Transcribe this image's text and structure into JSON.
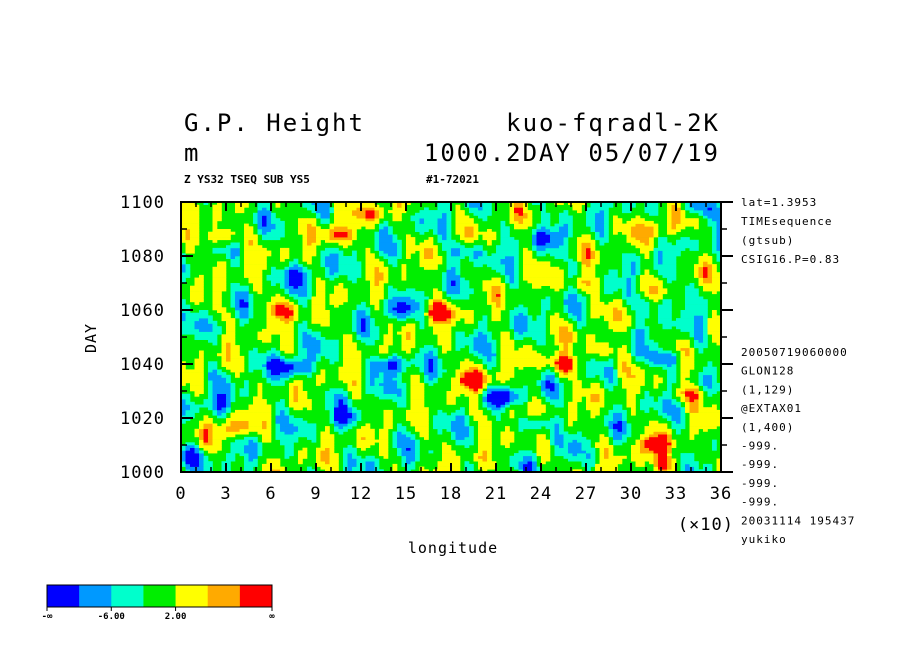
{
  "header": {
    "title_left": "G.P. Height",
    "title_right": "kuo-fqradl-2K",
    "unit": "m",
    "subtitle_right": "1000.2DAY 05/07/19",
    "info_left": "Z YS32 TSEQ SUB YS5",
    "info_right": "#1-72021"
  },
  "side_info_top": [
    "lat=1.3953",
    "TIMEsequence",
    "(gtsub)",
    "CSIG16.P=0.83"
  ],
  "side_info_bottom": [
    "20050719060000",
    "GLON128",
    "(1,129)",
    "@EXTAX01",
    "(1,400)",
    "-999.",
    "-999.",
    "-999.",
    "-999.",
    "20031114 195437",
    "yukiko"
  ],
  "chart_data": {
    "type": "heatmap",
    "xlabel": "longitude",
    "ylabel": "DAY",
    "x_multiplier_label": "(×10)",
    "xlim": [
      0,
      36
    ],
    "ylim": [
      1000,
      1100
    ],
    "x_ticks": [
      "0",
      "3",
      "6",
      "9",
      "12",
      "15",
      "18",
      "21",
      "24",
      "27",
      "30",
      "33",
      "36"
    ],
    "y_ticks": [
      "1000",
      "1020",
      "1040",
      "1060",
      "1080",
      "1100"
    ],
    "colorbar": {
      "colors": [
        "#0000ff",
        "#0099ff",
        "#00ffcc",
        "#00ee00",
        "#ffff00",
        "#ffaa00",
        "#ff0000"
      ],
      "labels": [
        "-∞",
        "-6.00",
        "2.00",
        "∞"
      ]
    },
    "features": [
      {
        "x": 2.6,
        "y": 1087,
        "v": 3
      },
      {
        "x": 10.5,
        "y": 1088,
        "v": 2.5
      },
      {
        "x": 13.0,
        "y": 1096,
        "v": 2
      },
      {
        "x": 27.0,
        "y": 1070,
        "v": 2
      },
      {
        "x": 32.0,
        "y": 1090,
        "v": 2
      },
      {
        "x": 6.5,
        "y": 1060,
        "v": 2.5
      },
      {
        "x": 17.0,
        "y": 1059,
        "v": 3
      },
      {
        "x": 19.5,
        "y": 1034,
        "v": 3.3
      },
      {
        "x": 25.5,
        "y": 1040,
        "v": 3.3
      },
      {
        "x": 28.0,
        "y": 1045,
        "v": 2
      },
      {
        "x": 3.5,
        "y": 1016,
        "v": 2.5
      },
      {
        "x": 31.5,
        "y": 1010,
        "v": 3.2
      },
      {
        "x": 32.5,
        "y": 1003,
        "v": 2.5
      },
      {
        "x": 34.0,
        "y": 1029,
        "v": 2.5
      },
      {
        "x": 22.0,
        "y": 1022,
        "v": 2
      },
      {
        "x": 14.0,
        "y": 1040,
        "v": -3.5
      },
      {
        "x": 7.5,
        "y": 1039,
        "v": -3.5
      },
      {
        "x": 21.5,
        "y": 1028,
        "v": -3
      },
      {
        "x": 24.0,
        "y": 1018,
        "v": -2.5
      },
      {
        "x": 19.0,
        "y": 1082,
        "v": -2
      },
      {
        "x": 24.5,
        "y": 1087,
        "v": -2
      },
      {
        "x": 8.0,
        "y": 1073,
        "v": -2
      },
      {
        "x": 11.0,
        "y": 1020,
        "v": -2
      },
      {
        "x": 32.0,
        "y": 1062,
        "v": -2
      },
      {
        "x": 32.5,
        "y": 1042,
        "v": -2.5
      },
      {
        "x": 2.5,
        "y": 1025,
        "v": -2
      },
      {
        "x": 14.5,
        "y": 1060,
        "v": -2
      },
      {
        "x": 34.5,
        "y": 1098,
        "v": -2.5
      },
      {
        "x": 0.5,
        "y": 1006,
        "v": -2.5
      }
    ]
  }
}
